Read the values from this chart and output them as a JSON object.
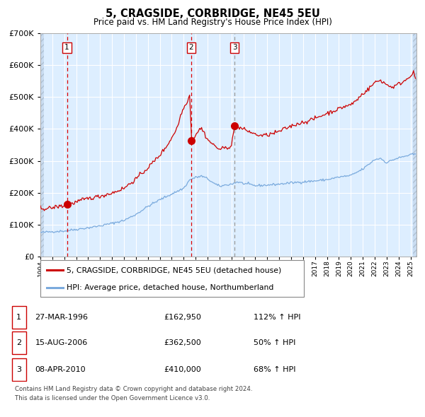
{
  "title": "5, CRAGSIDE, CORBRIDGE, NE45 5EU",
  "subtitle": "Price paid vs. HM Land Registry's House Price Index (HPI)",
  "legend_label_red": "5, CRAGSIDE, CORBRIDGE, NE45 5EU (detached house)",
  "legend_label_blue": "HPI: Average price, detached house, Northumberland",
  "transactions": [
    {
      "num": 1,
      "date": "27-MAR-1996",
      "price": 162950,
      "pct": "112%",
      "dir": "↑"
    },
    {
      "num": 2,
      "date": "15-AUG-2006",
      "price": 362500,
      "pct": "50%",
      "dir": "↑"
    },
    {
      "num": 3,
      "date": "08-APR-2010",
      "price": 410000,
      "pct": "68%",
      "dir": "↑"
    }
  ],
  "transaction_dates_decimal": [
    1996.23,
    2006.62,
    2010.27
  ],
  "transaction_prices": [
    162950,
    362500,
    410000
  ],
  "footnote1": "Contains HM Land Registry data © Crown copyright and database right 2024.",
  "footnote2": "This data is licensed under the Open Government Licence v3.0.",
  "ylim": [
    0,
    700000
  ],
  "xlim_start": 1994.0,
  "xlim_end": 2025.5,
  "background_color": "#ddeeff",
  "grid_color": "#ffffff",
  "red_line_color": "#cc0000",
  "blue_line_color": "#7aaadd",
  "hatch_color": "#c5d8ee"
}
